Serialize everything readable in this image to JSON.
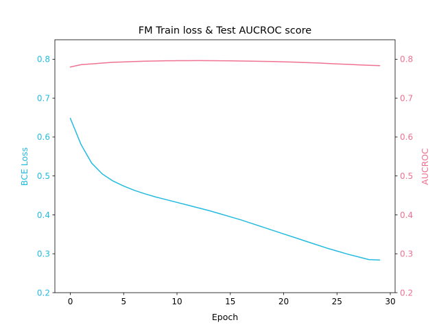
{
  "chart_data": {
    "type": "line",
    "title": "FM Train loss & Test AUCROC score",
    "xlabel": "Epoch",
    "ylabel_left": "BCE Loss",
    "ylabel_right": "AUCROC",
    "xlim": [
      -1.45,
      30.45
    ],
    "xticks": [
      0,
      5,
      10,
      15,
      20,
      25,
      30
    ],
    "ylim_left": [
      0.2,
      0.85
    ],
    "ylim_right": [
      0.2,
      0.85
    ],
    "yticks_left": [
      0.2,
      0.3,
      0.4,
      0.5,
      0.6,
      0.7,
      0.8
    ],
    "yticks_right": [
      0.2,
      0.3,
      0.4,
      0.5,
      0.6,
      0.7,
      0.8
    ],
    "grid": false,
    "x": [
      0,
      1,
      2,
      3,
      4,
      5,
      6,
      7,
      8,
      9,
      10,
      11,
      12,
      13,
      14,
      15,
      16,
      17,
      18,
      19,
      20,
      21,
      22,
      23,
      24,
      25,
      26,
      27,
      28,
      29
    ],
    "series": [
      {
        "axis": "left",
        "color": "#22bbe0",
        "values": [
          0.648,
          0.581,
          0.533,
          0.505,
          0.487,
          0.474,
          0.463,
          0.454,
          0.446,
          0.439,
          0.432,
          0.425,
          0.418,
          0.411,
          0.403,
          0.395,
          0.387,
          0.378,
          0.369,
          0.36,
          0.351,
          0.342,
          0.333,
          0.324,
          0.315,
          0.307,
          0.299,
          0.292,
          0.285,
          0.284
        ]
      },
      {
        "axis": "right",
        "color": "#f07090",
        "values": [
          0.78,
          0.786,
          0.788,
          0.79,
          0.792,
          0.793,
          0.794,
          0.795,
          0.7955,
          0.796,
          0.7962,
          0.7963,
          0.7964,
          0.7963,
          0.7961,
          0.7958,
          0.7955,
          0.795,
          0.7945,
          0.794,
          0.7932,
          0.7925,
          0.7915,
          0.7905,
          0.7893,
          0.788,
          0.7868,
          0.7855,
          0.7843,
          0.7835
        ]
      }
    ]
  }
}
